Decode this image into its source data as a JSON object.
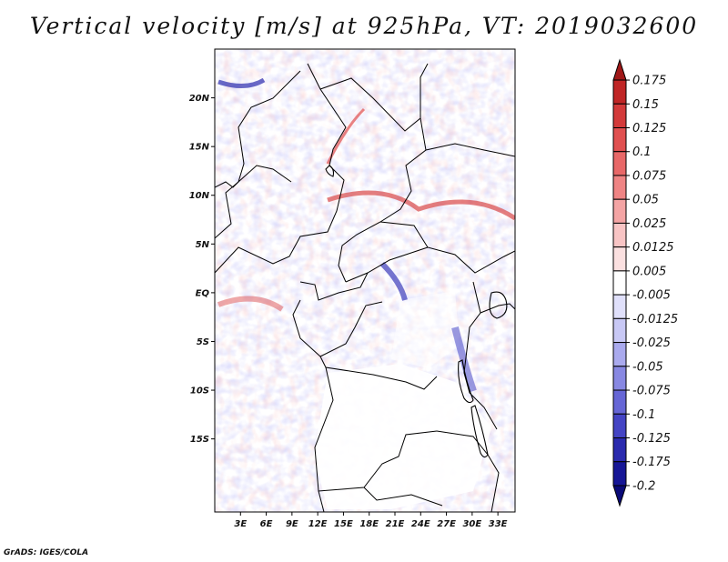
{
  "title": "Vertical velocity [m/s] at 925hPa, VT: 2019032600",
  "footer": "GrADS: IGES/COLA",
  "chart_data": {
    "type": "heatmap",
    "variable": "Vertical velocity",
    "units": "m/s",
    "pressure_level": "925hPa",
    "valid_time": "2019032600",
    "x_axis": {
      "range": [
        0,
        35
      ],
      "tick_values": [
        3,
        6,
        9,
        12,
        15,
        18,
        21,
        24,
        27,
        30,
        33
      ],
      "tick_labels": [
        "3E",
        "6E",
        "9E",
        "12E",
        "15E",
        "18E",
        "21E",
        "24E",
        "27E",
        "30E",
        "33E"
      ]
    },
    "y_axis": {
      "range": [
        -22.5,
        25
      ],
      "tick_values": [
        20,
        15,
        10,
        5,
        0,
        -5,
        -10,
        -15
      ],
      "tick_labels": [
        "20N",
        "15N",
        "10N",
        "5N",
        "EQ",
        "5S",
        "10S",
        "15S"
      ]
    },
    "colorbar": {
      "levels": [
        "0.175",
        "0.15",
        "0.125",
        "0.1",
        "0.075",
        "0.05",
        "0.025",
        "0.0125",
        "0.005",
        "-0.005",
        "-0.0125",
        "-0.025",
        "-0.05",
        "-0.075",
        "-0.1",
        "-0.125",
        "-0.175",
        "-0.2"
      ],
      "colors": [
        "#a01818",
        "#c02626",
        "#d33a3a",
        "#e05050",
        "#e86868",
        "#ef8484",
        "#f4a4a4",
        "#f8c4c4",
        "#fbe0e0",
        "#ffffff",
        "#e0e0fb",
        "#c8c8f5",
        "#aaaaee",
        "#8888e2",
        "#6666d6",
        "#4444c4",
        "#2a2aae",
        "#161696",
        "#0a0a78"
      ],
      "extend": "both"
    },
    "grid": false
  }
}
